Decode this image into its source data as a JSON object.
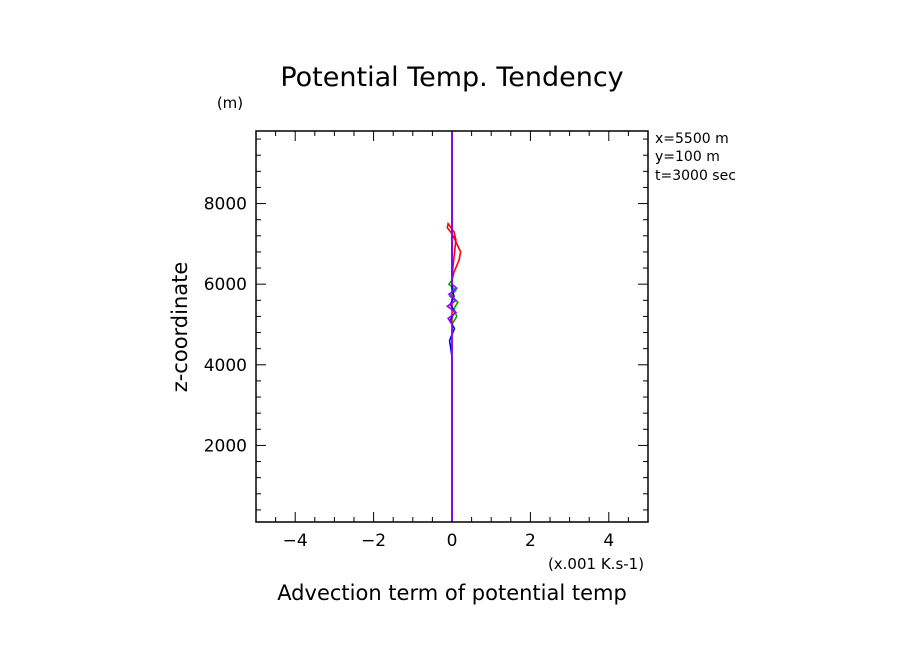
{
  "chart_data": {
    "type": "line",
    "title": "Potential Temp. Tendency",
    "xlabel": "Advection term of potential temp",
    "ylabel": "z-coordinate",
    "x_units": "(x.001 K.s-1)",
    "y_units": "(m)",
    "xlim": [
      -5,
      5
    ],
    "ylim": [
      100,
      9800
    ],
    "x_ticks": [
      -4,
      -2,
      0,
      2,
      4
    ],
    "x_tick_labels": [
      "−4",
      "−2",
      "0",
      "2",
      "4"
    ],
    "y_ticks": [
      2000,
      4000,
      6000,
      8000
    ],
    "y_tick_labels": [
      "2000",
      "4000",
      "6000",
      "8000"
    ],
    "grid": false,
    "annotations": [
      "x=5500 m",
      "y=100 m",
      "t=3000 sec"
    ],
    "series": [
      {
        "color": "#ff0000",
        "x": [
          0,
          0,
          0.05,
          0.18,
          0.22,
          0.1,
          0,
          -0.12,
          -0.1,
          0.05,
          0.1,
          0,
          0
        ],
        "y": [
          100,
          6100,
          6300,
          6600,
          6800,
          7050,
          7250,
          7400,
          7500,
          7300,
          7100,
          6200,
          9800
        ]
      },
      {
        "color": "#00aa00",
        "x": [
          0,
          0,
          0.12,
          0.05,
          0.15,
          -0.05,
          0.1,
          -0.08,
          0,
          0
        ],
        "y": [
          100,
          5000,
          5200,
          5400,
          5550,
          5700,
          5850,
          6000,
          6100,
          9800
        ]
      },
      {
        "color": "#0000ff",
        "x": [
          0,
          0,
          -0.06,
          0.06,
          -0.05,
          0.07,
          -0.04,
          0.05,
          0,
          0
        ],
        "y": [
          100,
          4200,
          4600,
          4900,
          5100,
          5300,
          5500,
          5700,
          5900,
          9800
        ]
      },
      {
        "color": "#9900ff",
        "x": [
          0,
          0,
          -0.1,
          0.1,
          -0.12,
          0.1,
          -0.08,
          0.12,
          0,
          0
        ],
        "y": [
          100,
          5000,
          5150,
          5300,
          5450,
          5600,
          5750,
          5900,
          6000,
          9800
        ]
      }
    ]
  }
}
